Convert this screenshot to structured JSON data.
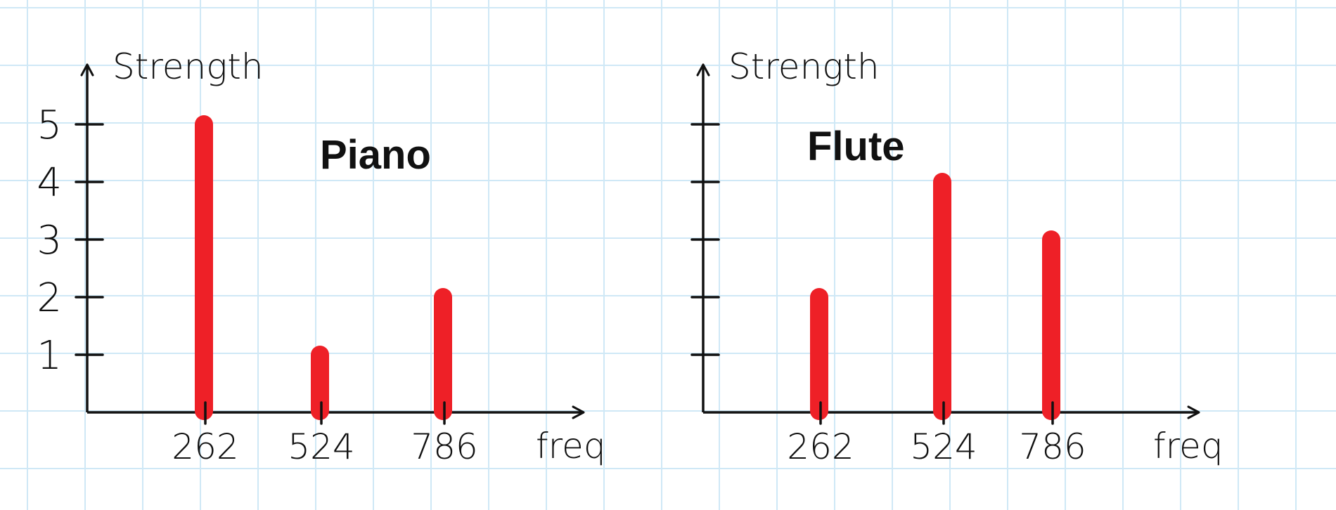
{
  "chart_data": [
    {
      "type": "bar",
      "title": "Piano",
      "xlabel": "freq",
      "ylabel": "Strength",
      "categories": [
        "262",
        "524",
        "786"
      ],
      "values": [
        5,
        1,
        2
      ],
      "ylim": [
        0,
        5
      ],
      "yticks": [
        "1",
        "2",
        "3",
        "4",
        "5"
      ],
      "grid": false
    },
    {
      "type": "bar",
      "title": "Flute",
      "xlabel": "freq",
      "ylabel": "Strength",
      "categories": [
        "262",
        "524",
        "786"
      ],
      "values": [
        2,
        4,
        3
      ],
      "ylim": [
        0,
        5
      ],
      "yticks": [
        "",
        "",
        "",
        "",
        ""
      ],
      "grid": false
    }
  ],
  "colors": {
    "bar": "#ee2027",
    "axis": "#111111",
    "grid": "#cfe8f6"
  }
}
